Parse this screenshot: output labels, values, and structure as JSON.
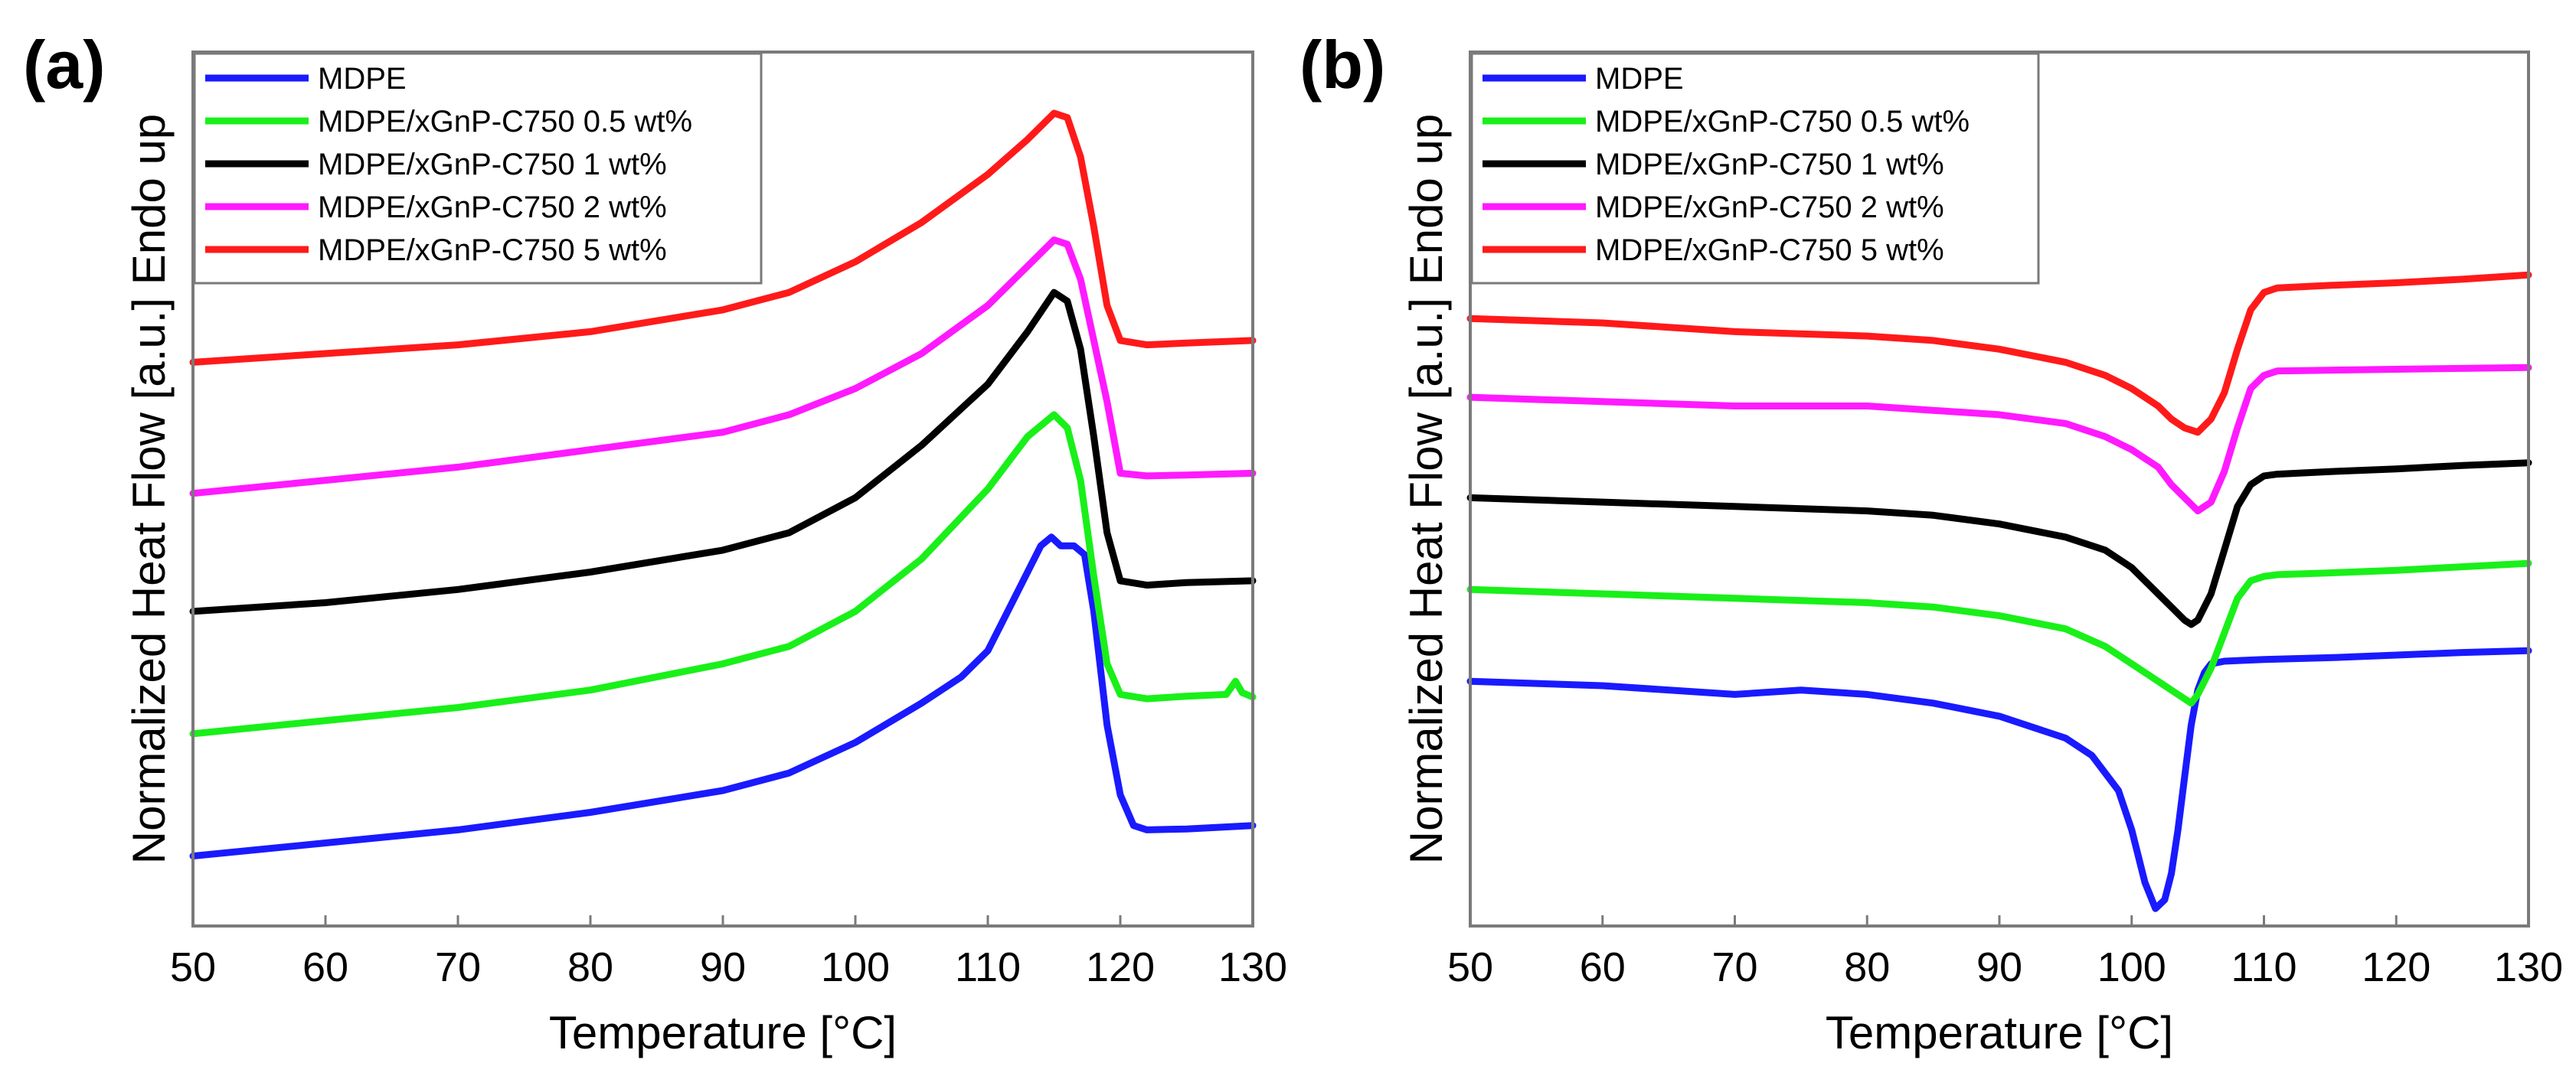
{
  "chart_data": [
    {
      "type": "line",
      "panel_label": "(a)",
      "xlabel": "Temperature [°C]",
      "ylabel": "Normalized Heat Flow [a.u.] Endo up",
      "xlim": [
        50,
        130
      ],
      "xticks": [
        50,
        60,
        70,
        80,
        90,
        100,
        110,
        120,
        130
      ],
      "ylim": [
        0,
        100
      ],
      "legend_position": "top-left",
      "series": [
        {
          "name": "MDPE",
          "color": "#1a1aff",
          "x": [
            50,
            60,
            70,
            80,
            90,
            95,
            100,
            105,
            108,
            110,
            112,
            114,
            114.8,
            115.5,
            116.5,
            117.3,
            118,
            119,
            120,
            121,
            122,
            125,
            130
          ],
          "y": [
            8,
            9.5,
            11,
            13,
            15.5,
            17.5,
            21,
            25.5,
            28.5,
            31.5,
            37.5,
            43.5,
            44.5,
            43.5,
            43.5,
            42.5,
            36,
            23,
            15,
            11.5,
            11,
            11.1,
            11.5
          ]
        },
        {
          "name": "MDPE/xGnP-C750 0.5 wt%",
          "color": "#19f019",
          "x": [
            50,
            60,
            70,
            80,
            90,
            95,
            100,
            105,
            110,
            113,
            115,
            116,
            117,
            118,
            119,
            120,
            122,
            125,
            128,
            128.7,
            129.2,
            130
          ],
          "y": [
            22,
            23.5,
            25,
            27,
            30,
            32,
            36,
            42,
            50,
            56,
            58.5,
            57,
            51,
            40,
            30,
            26.5,
            26,
            26.3,
            26.5,
            28,
            26.7,
            26.2
          ]
        },
        {
          "name": "MDPE/xGnP-C750 1 wt%",
          "color": "#000000",
          "x": [
            50,
            60,
            70,
            80,
            90,
            95,
            100,
            105,
            110,
            113,
            115,
            116,
            117,
            118,
            119,
            120,
            122,
            125,
            130
          ],
          "y": [
            36,
            37,
            38.5,
            40.5,
            43,
            45,
            49,
            55,
            62,
            68,
            72.5,
            71.5,
            66,
            56,
            45,
            39.5,
            39,
            39.3,
            39.5
          ]
        },
        {
          "name": "MDPE/xGnP-C750 2 wt%",
          "color": "#ff1aff",
          "x": [
            50,
            60,
            70,
            80,
            90,
            95,
            100,
            105,
            110,
            113,
            115,
            116,
            117,
            118,
            119,
            120,
            122,
            125,
            130
          ],
          "y": [
            49.5,
            51,
            52.5,
            54.5,
            56.5,
            58.5,
            61.5,
            65.5,
            71,
            75.5,
            78.5,
            78,
            74,
            67,
            60,
            51.8,
            51.5,
            51.6,
            51.8
          ]
        },
        {
          "name": "MDPE/xGnP-C750 5 wt%",
          "color": "#ff1a1a",
          "x": [
            50,
            60,
            70,
            80,
            90,
            95,
            100,
            105,
            110,
            113,
            115,
            116,
            117,
            118,
            119,
            120,
            122,
            125,
            130
          ],
          "y": [
            64.5,
            65.5,
            66.5,
            68,
            70.5,
            72.5,
            76,
            80.5,
            86,
            90,
            93,
            92.5,
            88,
            80,
            71,
            67,
            66.5,
            66.7,
            67
          ]
        }
      ]
    },
    {
      "type": "line",
      "panel_label": "(b)",
      "xlabel": "Temperature [°C]",
      "ylabel": "Normalized Heat Flow [a.u.] Endo up",
      "xlim": [
        50,
        130
      ],
      "xticks": [
        50,
        60,
        70,
        80,
        90,
        100,
        110,
        120,
        130
      ],
      "ylim": [
        0,
        100
      ],
      "legend_position": "top-left",
      "series": [
        {
          "name": "MDPE",
          "color": "#1a1aff",
          "x": [
            50,
            60,
            70,
            75,
            80,
            85,
            90,
            95,
            97,
            99,
            100,
            101,
            101.8,
            102.5,
            103,
            103.5,
            104,
            104.5,
            105,
            105.5,
            106,
            107,
            110,
            115,
            120,
            125,
            130
          ],
          "y": [
            28,
            27.5,
            26.5,
            27,
            26.5,
            25.5,
            24,
            21.5,
            19.5,
            15.5,
            11,
            5,
            2,
            3,
            6,
            11,
            17,
            23,
            27,
            29,
            30,
            30.3,
            30.5,
            30.7,
            31,
            31.3,
            31.5
          ]
        },
        {
          "name": "MDPE/xGnP-C750 0.5 wt%",
          "color": "#19f019",
          "x": [
            50,
            60,
            70,
            80,
            85,
            90,
            95,
            98,
            100,
            102,
            103,
            104,
            104.5,
            105,
            106,
            107,
            108,
            109,
            110,
            111,
            115,
            120,
            125,
            130
          ],
          "y": [
            38.5,
            38,
            37.5,
            37,
            36.5,
            35.5,
            34,
            32,
            30,
            28,
            27,
            26,
            25.5,
            26.5,
            29.5,
            33.5,
            37.5,
            39.5,
            40,
            40.2,
            40.4,
            40.7,
            41.1,
            41.5
          ]
        },
        {
          "name": "MDPE/xGnP-C750 1 wt%",
          "color": "#000000",
          "x": [
            50,
            60,
            70,
            80,
            85,
            90,
            95,
            98,
            100,
            102,
            103,
            104,
            104.5,
            105,
            106,
            107,
            108,
            109,
            110,
            111,
            115,
            120,
            125,
            130
          ],
          "y": [
            49,
            48.5,
            48,
            47.5,
            47,
            46,
            44.5,
            43,
            41,
            38,
            36.5,
            35,
            34.5,
            35,
            38,
            43,
            48,
            50.5,
            51.5,
            51.7,
            52,
            52.3,
            52.7,
            53
          ]
        },
        {
          "name": "MDPE/xGnP-C750 2 wt%",
          "color": "#ff1aff",
          "x": [
            50,
            60,
            70,
            80,
            85,
            90,
            95,
            98,
            100,
            102,
            103,
            104,
            105,
            106,
            107,
            108,
            109,
            110,
            111,
            115,
            120,
            125,
            130
          ],
          "y": [
            60.5,
            60,
            59.5,
            59.5,
            59,
            58.5,
            57.5,
            56,
            54.5,
            52.5,
            50.5,
            49,
            47.5,
            48.5,
            52,
            57,
            61.5,
            63,
            63.5,
            63.6,
            63.7,
            63.8,
            63.9
          ]
        },
        {
          "name": "MDPE/xGnP-C750 5 wt%",
          "color": "#ff1a1a",
          "x": [
            50,
            60,
            70,
            80,
            85,
            90,
            95,
            98,
            100,
            102,
            103,
            104,
            105,
            106,
            107,
            108,
            109,
            110,
            111,
            115,
            120,
            125,
            130
          ],
          "y": [
            69.5,
            69,
            68,
            67.5,
            67,
            66,
            64.5,
            63,
            61.5,
            59.5,
            58,
            57,
            56.5,
            58,
            61,
            66,
            70.5,
            72.5,
            73,
            73.3,
            73.6,
            74,
            74.5
          ]
        }
      ]
    }
  ]
}
